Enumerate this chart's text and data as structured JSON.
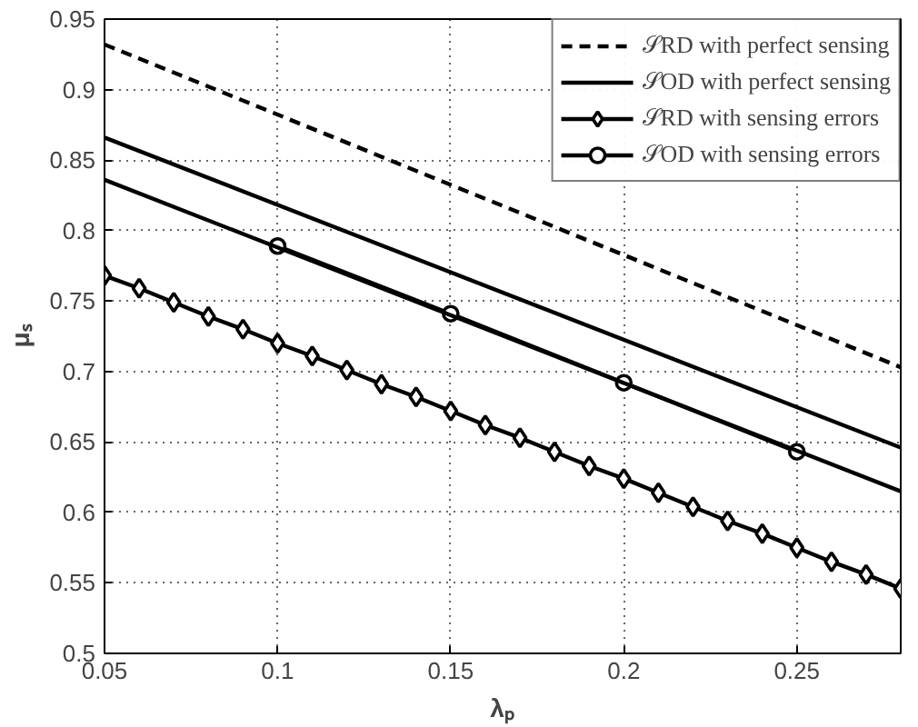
{
  "chart_data": {
    "type": "line",
    "xlabel": "λₚ",
    "ylabel": "μₛ",
    "xlim": [
      0.05,
      0.28
    ],
    "ylim": [
      0.5,
      0.95
    ],
    "xticks": [
      0.05,
      0.1,
      0.15,
      0.2,
      0.25
    ],
    "yticks": [
      0.5,
      0.55,
      0.6,
      0.65,
      0.7,
      0.75,
      0.8,
      0.85,
      0.9,
      0.95
    ],
    "grid": true,
    "legend": "top right",
    "series": [
      {
        "name": "𝒮RD with perfect sensing",
        "color": "#000000",
        "line_style": "dashed",
        "marker": "none",
        "x": [
          0.05,
          0.28
        ],
        "values": [
          0.932,
          0.703
        ]
      },
      {
        "name": "𝒮OD with perfect sensing",
        "color": "#000000",
        "line_style": "solid",
        "marker": "none",
        "x": [
          0.05,
          0.28
        ],
        "values": [
          0.866,
          0.646
        ]
      },
      {
        "name": "𝒮RD with sensing errors",
        "color": "#000000",
        "line_style": "solid",
        "marker": "diamond",
        "x": [
          0.05,
          0.06,
          0.07,
          0.08,
          0.09,
          0.1,
          0.11,
          0.12,
          0.13,
          0.14,
          0.15,
          0.16,
          0.17,
          0.18,
          0.19,
          0.2,
          0.21,
          0.22,
          0.23,
          0.24,
          0.25,
          0.26,
          0.27,
          0.28
        ],
        "values": [
          0.768,
          0.759,
          0.749,
          0.739,
          0.73,
          0.72,
          0.711,
          0.701,
          0.691,
          0.682,
          0.672,
          0.662,
          0.653,
          0.643,
          0.633,
          0.624,
          0.614,
          0.604,
          0.594,
          0.585,
          0.575,
          0.565,
          0.556,
          0.546
        ]
      },
      {
        "name": "𝒮OD with sensing errors",
        "color": "#000000",
        "line_style": "solid",
        "marker": "circle",
        "x": [
          0.1,
          0.15,
          0.2,
          0.25
        ],
        "values": [
          0.789,
          0.741,
          0.692,
          0.643
        ]
      },
      {
        "color": "#000000",
        "line_style": "solid",
        "marker": "none",
        "x": [
          0.05,
          0.28
        ],
        "values": [
          0.836,
          0.615
        ]
      }
    ]
  }
}
